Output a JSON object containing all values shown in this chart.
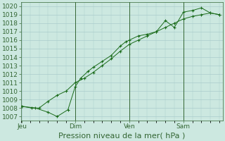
{
  "title": "Pression niveau de la mer( hPa )",
  "bg_color": "#cce8e0",
  "grid_color": "#aacccc",
  "line_color": "#1a6b1a",
  "ylim": [
    1006.5,
    1020.5
  ],
  "yticks": [
    1007,
    1008,
    1009,
    1010,
    1011,
    1012,
    1013,
    1014,
    1015,
    1016,
    1017,
    1018,
    1019,
    1020
  ],
  "xtick_labels": [
    "Jeu",
    "Dim",
    "Ven",
    "Sam"
  ],
  "xtick_positions": [
    0.05,
    3.0,
    6.0,
    9.0
  ],
  "vline_positions": [
    3.0,
    6.0,
    9.0
  ],
  "series1_x": [
    0.05,
    0.8,
    1.5,
    2.0,
    2.6,
    3.0,
    3.3,
    3.7,
    4.0,
    4.5,
    5.0,
    5.5,
    5.8,
    6.0,
    6.5,
    7.0,
    7.5,
    8.0,
    8.5,
    9.0,
    9.5,
    10.0,
    10.5,
    11.0
  ],
  "series1_y": [
    1008.2,
    1008.0,
    1007.5,
    1007.0,
    1007.8,
    1010.5,
    1011.5,
    1012.3,
    1012.8,
    1013.5,
    1014.2,
    1015.3,
    1015.8,
    1016.0,
    1016.5,
    1016.7,
    1017.0,
    1018.3,
    1017.5,
    1019.3,
    1019.5,
    1019.8,
    1019.2,
    1019.0
  ],
  "series2_x": [
    0.05,
    0.6,
    1.0,
    1.5,
    2.0,
    2.5,
    3.0,
    3.5,
    4.0,
    4.5,
    5.0,
    5.5,
    6.0,
    6.5,
    7.0,
    7.5,
    8.0,
    8.5,
    9.0,
    9.5,
    10.0,
    10.5,
    11.0
  ],
  "series2_y": [
    1008.2,
    1008.0,
    1008.0,
    1008.8,
    1009.5,
    1010.0,
    1011.0,
    1011.5,
    1012.2,
    1013.0,
    1013.8,
    1014.7,
    1015.5,
    1016.0,
    1016.5,
    1017.0,
    1017.5,
    1018.0,
    1018.5,
    1018.8,
    1019.0,
    1019.2,
    1019.0
  ],
  "xlim": [
    0,
    11.2
  ],
  "title_fontsize": 8,
  "tick_fontsize": 6.5
}
